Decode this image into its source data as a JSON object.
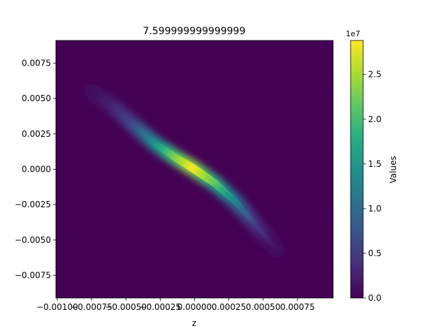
{
  "chart_data": {
    "type": "heatmap",
    "title": "7.599999999999999",
    "xlabel": "z",
    "ylabel": "",
    "xlim": [
      -0.00101,
      0.00101
    ],
    "ylim": [
      -0.0091,
      0.0091
    ],
    "x_ticks": [
      {
        "value": -0.001,
        "label": "−0.00100"
      },
      {
        "value": -0.00075,
        "label": "−0.00075"
      },
      {
        "value": -0.0005,
        "label": "−0.00050"
      },
      {
        "value": -0.00025,
        "label": "−0.00025"
      },
      {
        "value": 0.0,
        "label": "0.00000"
      },
      {
        "value": 0.00025,
        "label": "0.00025"
      },
      {
        "value": 0.0005,
        "label": "0.00050"
      },
      {
        "value": 0.00075,
        "label": "0.00075"
      }
    ],
    "y_ticks": [
      {
        "value": 0.0075,
        "label": "0.0075"
      },
      {
        "value": 0.005,
        "label": "0.0050"
      },
      {
        "value": 0.0025,
        "label": "0.0025"
      },
      {
        "value": 0.0,
        "label": "0.0000"
      },
      {
        "value": -0.0025,
        "label": "−0.0025"
      },
      {
        "value": -0.005,
        "label": "−0.0050"
      },
      {
        "value": -0.0075,
        "label": "−0.0075"
      }
    ],
    "colorbar": {
      "label": "Values",
      "min": 0,
      "max": 28800000,
      "multiplier": "1e7",
      "colormap": "viridis",
      "ticks": [
        {
          "value": 0,
          "label": "0.0"
        },
        {
          "value": 5000000,
          "label": "0.5"
        },
        {
          "value": 10000000,
          "label": "1.0"
        },
        {
          "value": 15000000,
          "label": "1.5"
        },
        {
          "value": 20000000,
          "label": "2.0"
        },
        {
          "value": 25000000,
          "label": "2.5"
        }
      ]
    },
    "ridge": [
      {
        "z": -0.00075,
        "y": 0.0055,
        "value": 800000
      },
      {
        "z": -0.0006,
        "y": 0.0045,
        "value": 2500000
      },
      {
        "z": -0.00045,
        "y": 0.0032,
        "value": 6000000
      },
      {
        "z": -0.0003,
        "y": 0.0019,
        "value": 13000000
      },
      {
        "z": -0.00015,
        "y": 0.0009,
        "value": 22000000
      },
      {
        "z": 0.0,
        "y": 0.0,
        "value": 28500000
      },
      {
        "z": 0.00015,
        "y": -0.001,
        "value": 22000000
      },
      {
        "z": 0.0003,
        "y": -0.0023,
        "value": 13000000
      },
      {
        "z": 0.00045,
        "y": -0.004,
        "value": 5000000
      },
      {
        "z": 0.0006,
        "y": -0.0057,
        "value": 1000000
      }
    ]
  }
}
